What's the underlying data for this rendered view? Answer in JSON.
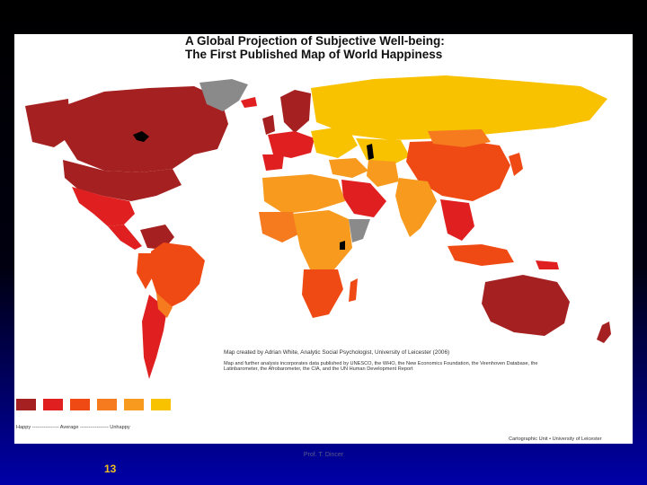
{
  "map": {
    "title_line1": "A Global Projection of Subjective Well-being:",
    "title_line2": "The First Published Map of World Happiness",
    "credit_main": "Map created by Adrian White, Analytic Social Psychologist, University of Leicester (2006)",
    "credit_detail": "Map and further analysis incorporates data published by UNESCO, the WHO, the New Economics Foundation, the Veenhoven Database, the Latinbarometer, the Afrobarometer, the CIA, and the UN Human Development Report",
    "cartographic_unit": "Cartographic Unit  •  University of Leicester",
    "legend_scale": "Happy ---------------- Average ----------------- Unhappy",
    "legend_colors": [
      "#a52020",
      "#e02020",
      "#f04a14",
      "#f67a1e",
      "#f79a1e",
      "#f8c200"
    ],
    "no_data_color": "#8a8a8a",
    "ocean_color": "#ffffff",
    "lake_color": "#000000"
  },
  "slide": {
    "footer_caption": "Prof. T. Dincer",
    "number": "13"
  }
}
